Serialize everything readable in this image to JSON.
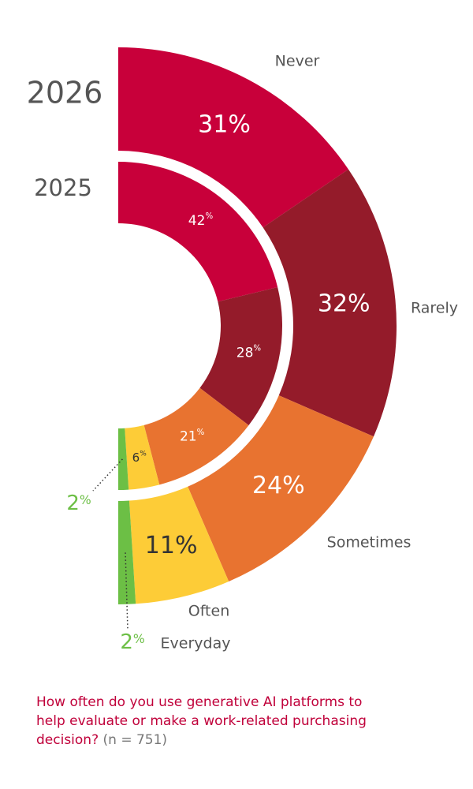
{
  "chart_data": {
    "type": "half-donut",
    "categories": [
      "Never",
      "Rarely",
      "Sometimes",
      "Often",
      "Everyday"
    ],
    "colors": [
      "#c8003a",
      "#941b2a",
      "#e87330",
      "#fdcc37",
      "#6cbf45"
    ],
    "series": [
      {
        "name": "2026",
        "values": [
          31,
          32,
          24,
          11,
          2
        ],
        "value_labels": [
          "31%",
          "32%",
          "24%",
          "11%",
          "2%"
        ]
      },
      {
        "name": "2025",
        "values": [
          42,
          28,
          21,
          6,
          2
        ],
        "value_labels": [
          "42%",
          "28%",
          "21%",
          "6%",
          "2%"
        ]
      }
    ],
    "question": "How often do you use generative AI platforms to help evaluate or make a work-related purchasing decision?",
    "sample": "(n = 751)"
  }
}
